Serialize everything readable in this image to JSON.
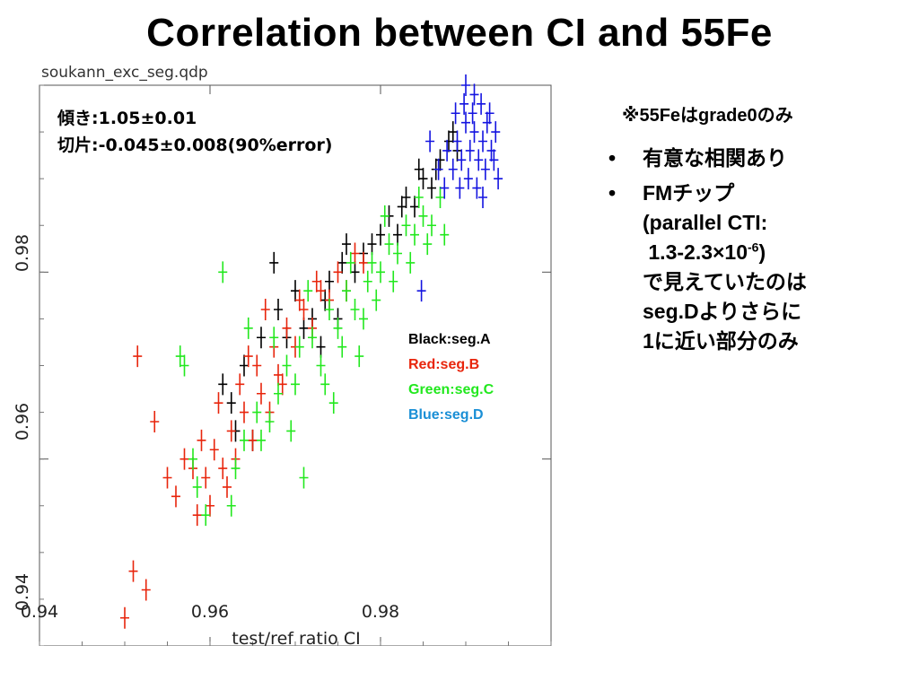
{
  "slide": {
    "title": "Correlation between CI and 55Fe",
    "note": "※55Feはgrade0のみ",
    "bullet_marker": "•",
    "bullet1": "有意な相関あり",
    "bullet2": {
      "line1": "FMチップ",
      "line2": "(parallel CTI:",
      "line3_pre": " 1.3-2.3×10",
      "line3_sup": "-6",
      "line3_post": ")",
      "line4": "で見えていたのは",
      "line5": "seg.Dよりさらに",
      "line6": "1に近い部分のみ"
    }
  },
  "chart_data": {
    "type": "scatter",
    "file_label": "soukann_exc_seg.qdp",
    "xlabel": "test/ref ratio CI",
    "ylabel": "",
    "xlim": [
      0.94,
      1.0
    ],
    "ylim": [
      0.94,
      1.0
    ],
    "xticks": [
      "0.94",
      "0.96",
      "0.98"
    ],
    "yticks": [
      "0.94",
      "0.96",
      "0.98"
    ],
    "annotation_line1": "傾き:1.05±0.01",
    "annotation_line2": "切片:-0.045±0.008(90%error)",
    "legend_position": "center-right",
    "series": [
      {
        "name": "Black:seg.A",
        "color": "#000000",
        "points": [
          [
            0.9615,
            0.968
          ],
          [
            0.9625,
            0.966
          ],
          [
            0.964,
            0.97
          ],
          [
            0.966,
            0.973
          ],
          [
            0.968,
            0.976
          ],
          [
            0.969,
            0.973
          ],
          [
            0.97,
            0.978
          ],
          [
            0.972,
            0.975
          ],
          [
            0.974,
            0.979
          ],
          [
            0.9755,
            0.981
          ],
          [
            0.977,
            0.98
          ],
          [
            0.979,
            0.983
          ],
          [
            0.98,
            0.984
          ],
          [
            0.981,
            0.986
          ],
          [
            0.982,
            0.984
          ],
          [
            0.983,
            0.988
          ],
          [
            0.984,
            0.987
          ],
          [
            0.985,
            0.99
          ],
          [
            0.986,
            0.989
          ],
          [
            0.987,
            0.992
          ],
          [
            0.988,
            0.994
          ],
          [
            0.989,
            0.993
          ],
          [
            0.9675,
            0.981
          ],
          [
            0.971,
            0.974
          ],
          [
            0.9735,
            0.977
          ],
          [
            0.976,
            0.983
          ],
          [
            0.978,
            0.982
          ],
          [
            0.9825,
            0.987
          ],
          [
            0.9845,
            0.991
          ],
          [
            0.9865,
            0.991
          ],
          [
            0.9885,
            0.995
          ],
          [
            0.963,
            0.963
          ],
          [
            0.965,
            0.962
          ],
          [
            0.973,
            0.972
          ],
          [
            0.975,
            0.975
          ]
        ]
      },
      {
        "name": "Red:seg.B",
        "color": "#e8250c",
        "points": [
          [
            0.95,
            0.943
          ],
          [
            0.951,
            0.948
          ],
          [
            0.9525,
            0.946
          ],
          [
            0.9515,
            0.971
          ],
          [
            0.9535,
            0.964
          ],
          [
            0.955,
            0.958
          ],
          [
            0.956,
            0.956
          ],
          [
            0.957,
            0.96
          ],
          [
            0.958,
            0.959
          ],
          [
            0.9585,
            0.954
          ],
          [
            0.959,
            0.962
          ],
          [
            0.96,
            0.955
          ],
          [
            0.9605,
            0.961
          ],
          [
            0.961,
            0.966
          ],
          [
            0.962,
            0.957
          ],
          [
            0.9625,
            0.963
          ],
          [
            0.963,
            0.96
          ],
          [
            0.9635,
            0.968
          ],
          [
            0.964,
            0.965
          ],
          [
            0.965,
            0.962
          ],
          [
            0.9655,
            0.97
          ],
          [
            0.966,
            0.967
          ],
          [
            0.967,
            0.965
          ],
          [
            0.9675,
            0.972
          ],
          [
            0.968,
            0.969
          ],
          [
            0.969,
            0.974
          ],
          [
            0.97,
            0.972
          ],
          [
            0.971,
            0.976
          ],
          [
            0.972,
            0.974
          ],
          [
            0.973,
            0.978
          ],
          [
            0.974,
            0.977
          ],
          [
            0.975,
            0.98
          ],
          [
            0.976,
            0.978
          ],
          [
            0.977,
            0.982
          ],
          [
            0.978,
            0.981
          ],
          [
            0.9645,
            0.971
          ],
          [
            0.9665,
            0.976
          ],
          [
            0.9595,
            0.958
          ],
          [
            0.9615,
            0.959
          ],
          [
            0.9685,
            0.968
          ],
          [
            0.9705,
            0.977
          ],
          [
            0.9725,
            0.979
          ]
        ]
      },
      {
        "name": "Green:seg.C",
        "color": "#22e81e",
        "points": [
          [
            0.957,
            0.97
          ],
          [
            0.9585,
            0.957
          ],
          [
            0.9595,
            0.954
          ],
          [
            0.9625,
            0.955
          ],
          [
            0.963,
            0.959
          ],
          [
            0.964,
            0.962
          ],
          [
            0.9655,
            0.965
          ],
          [
            0.967,
            0.964
          ],
          [
            0.968,
            0.967
          ],
          [
            0.969,
            0.97
          ],
          [
            0.97,
            0.968
          ],
          [
            0.9705,
            0.972
          ],
          [
            0.971,
            0.958
          ],
          [
            0.972,
            0.973
          ],
          [
            0.973,
            0.97
          ],
          [
            0.974,
            0.976
          ],
          [
            0.975,
            0.974
          ],
          [
            0.976,
            0.978
          ],
          [
            0.977,
            0.976
          ],
          [
            0.978,
            0.975
          ],
          [
            0.9785,
            0.979
          ],
          [
            0.979,
            0.981
          ],
          [
            0.98,
            0.98
          ],
          [
            0.981,
            0.983
          ],
          [
            0.982,
            0.982
          ],
          [
            0.983,
            0.985
          ],
          [
            0.984,
            0.984
          ],
          [
            0.985,
            0.986
          ],
          [
            0.986,
            0.985
          ],
          [
            0.987,
            0.988
          ],
          [
            0.9615,
            0.98
          ],
          [
            0.9645,
            0.974
          ],
          [
            0.966,
            0.962
          ],
          [
            0.9675,
            0.973
          ],
          [
            0.9695,
            0.963
          ],
          [
            0.9715,
            0.978
          ],
          [
            0.9735,
            0.968
          ],
          [
            0.9755,
            0.972
          ],
          [
            0.9765,
            0.981
          ],
          [
            0.9775,
            0.971
          ],
          [
            0.9795,
            0.977
          ],
          [
            0.9805,
            0.986
          ],
          [
            0.9815,
            0.979
          ],
          [
            0.9835,
            0.981
          ],
          [
            0.9845,
            0.988
          ],
          [
            0.9855,
            0.983
          ],
          [
            0.9875,
            0.984
          ],
          [
            0.9745,
            0.966
          ],
          [
            0.9565,
            0.971
          ],
          [
            0.958,
            0.96
          ]
        ]
      },
      {
        "name": "Blue:seg.D",
        "color": "#1414e0",
        "points": [
          [
            0.9885,
            0.991
          ],
          [
            0.989,
            0.994
          ],
          [
            0.9895,
            0.992
          ],
          [
            0.99,
            0.996
          ],
          [
            0.9905,
            0.993
          ],
          [
            0.991,
            0.995
          ],
          [
            0.9915,
            0.992
          ],
          [
            0.992,
            0.994
          ],
          [
            0.9925,
            0.996
          ],
          [
            0.993,
            0.993
          ],
          [
            0.9935,
            0.995
          ],
          [
            0.9888,
            0.997
          ],
          [
            0.9898,
            0.998
          ],
          [
            0.9908,
            0.997
          ],
          [
            0.9918,
            0.998
          ],
          [
            0.9928,
            0.997
          ],
          [
            0.9893,
            0.989
          ],
          [
            0.9903,
            0.99
          ],
          [
            0.9913,
            0.989
          ],
          [
            0.9923,
            0.991
          ],
          [
            0.9933,
            0.992
          ],
          [
            0.9878,
            0.993
          ],
          [
            0.9868,
            0.991
          ],
          [
            0.9858,
            0.994
          ],
          [
            0.99,
            1.0
          ],
          [
            0.9938,
            0.99
          ],
          [
            0.9848,
            0.978
          ],
          [
            0.992,
            0.988
          ],
          [
            0.9875,
            0.989
          ],
          [
            0.991,
            0.999
          ]
        ]
      }
    ]
  }
}
